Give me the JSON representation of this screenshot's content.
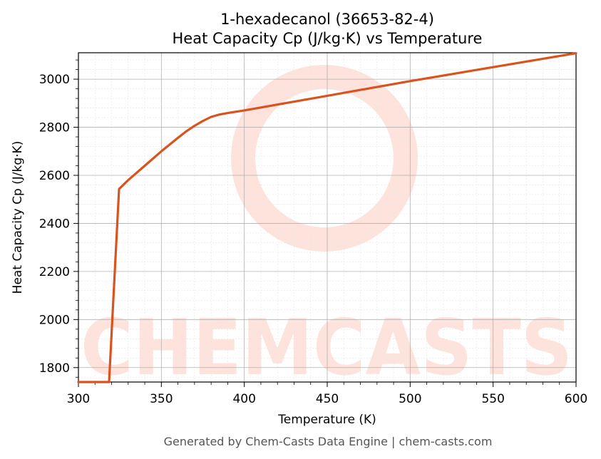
{
  "chart_data": {
    "type": "line",
    "title_line1": "1-hexadecanol (36653-82-4)",
    "title_line2": "Heat Capacity Cp (J/kg·K) vs Temperature",
    "xlabel": "Temperature (K)",
    "ylabel": "Heat Capacity Cp (J/kg·K)",
    "xlim": [
      300,
      600
    ],
    "ylim": [
      1740,
      3110
    ],
    "x_ticks": [
      300,
      350,
      400,
      450,
      500,
      550,
      600
    ],
    "y_ticks": [
      1800,
      2000,
      2200,
      2400,
      2600,
      2800,
      3000
    ],
    "grid": true,
    "series": [
      {
        "color": "#d9531e",
        "x": [
          300,
          318.5,
          324.5,
          330,
          340,
          350,
          360,
          365,
          370,
          375,
          380,
          385,
          390,
          400,
          450,
          500,
          550,
          600
        ],
        "y": [
          1740,
          1740,
          2543,
          2580,
          2640,
          2700,
          2756,
          2783,
          2806,
          2826,
          2843,
          2853,
          2859,
          2870,
          2931,
          2992,
          3050,
          3108
        ]
      }
    ]
  },
  "watermark": {
    "text": "CHEMCASTS",
    "color": "#fde3dc"
  },
  "footer": "Generated by Chem-Casts Data Engine | chem-casts.com"
}
